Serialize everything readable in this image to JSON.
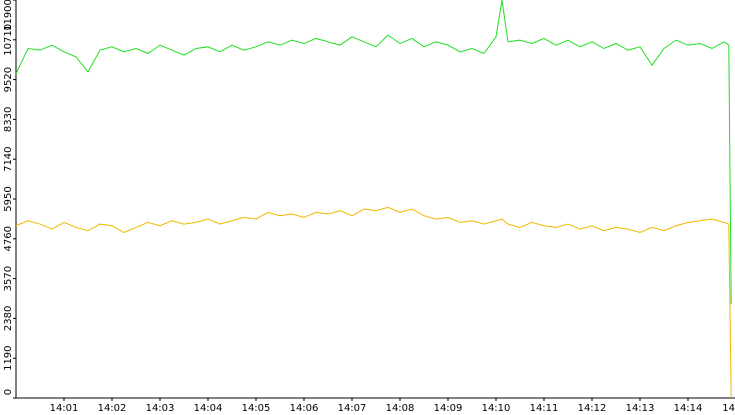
{
  "chart_data": {
    "type": "line",
    "x": [
      0,
      0.25,
      0.5,
      0.75,
      1,
      1.25,
      1.5,
      1.75,
      2,
      2.25,
      2.5,
      2.75,
      3,
      3.25,
      3.5,
      3.75,
      4,
      4.25,
      4.5,
      4.75,
      5,
      5.25,
      5.5,
      5.75,
      6,
      6.25,
      6.5,
      6.75,
      7,
      7.25,
      7.5,
      7.75,
      8,
      8.25,
      8.5,
      8.75,
      9,
      9.25,
      9.5,
      9.75,
      10,
      10.125,
      10.25,
      10.5,
      10.75,
      11,
      11.25,
      11.5,
      11.75,
      12,
      12.25,
      12.5,
      12.75,
      13,
      13.25,
      13.5,
      13.75,
      14,
      14.25,
      14.5,
      14.75,
      14.85,
      14.9
    ],
    "series": [
      {
        "color": "#22dd22",
        "values": [
          9700,
          10450,
          10400,
          10550,
          10350,
          10200,
          9750,
          10400,
          10500,
          10350,
          10450,
          10300,
          10550,
          10400,
          10250,
          10450,
          10500,
          10350,
          10550,
          10400,
          10500,
          10650,
          10550,
          10700,
          10600,
          10750,
          10650,
          10550,
          10800,
          10650,
          10500,
          10850,
          10600,
          10750,
          10500,
          10650,
          10550,
          10350,
          10450,
          10300,
          10800,
          11900,
          10650,
          10700,
          10600,
          10750,
          10550,
          10700,
          10500,
          10650,
          10450,
          10600,
          10400,
          10500,
          9950,
          10450,
          10700,
          10550,
          10600,
          10450,
          10650,
          10550,
          2800
        ]
      },
      {
        "color": "#f0b800",
        "values": [
          5150,
          5300,
          5200,
          5050,
          5250,
          5100,
          5000,
          5200,
          5150,
          4950,
          5100,
          5250,
          5150,
          5300,
          5200,
          5250,
          5350,
          5200,
          5300,
          5400,
          5350,
          5550,
          5450,
          5500,
          5400,
          5550,
          5500,
          5600,
          5450,
          5650,
          5600,
          5700,
          5550,
          5650,
          5450,
          5350,
          5400,
          5250,
          5300,
          5200,
          5300,
          5350,
          5200,
          5100,
          5250,
          5150,
          5100,
          5200,
          5050,
          5150,
          5000,
          5100,
          5050,
          4950,
          5100,
          5000,
          5150,
          5250,
          5300,
          5350,
          5250,
          5200,
          0
        ]
      }
    ],
    "xlim": [
      0,
      15
    ],
    "xticks": [
      {
        "value": 1,
        "label": "14:01"
      },
      {
        "value": 2,
        "label": "14:02"
      },
      {
        "value": 3,
        "label": "14:03"
      },
      {
        "value": 4,
        "label": "14:04"
      },
      {
        "value": 5,
        "label": "14:05"
      },
      {
        "value": 6,
        "label": "14:06"
      },
      {
        "value": 7,
        "label": "14:07"
      },
      {
        "value": 8,
        "label": "14:08"
      },
      {
        "value": 9,
        "label": "14:09"
      },
      {
        "value": 10,
        "label": "14:10"
      },
      {
        "value": 11,
        "label": "14:11"
      },
      {
        "value": 12,
        "label": "14:12"
      },
      {
        "value": 13,
        "label": "14:13"
      },
      {
        "value": 14,
        "label": "14:14"
      },
      {
        "value": 15,
        "label": "14"
      }
    ],
    "ylim": [
      0,
      11900
    ],
    "yticks": [
      0,
      1190,
      2380,
      3570,
      4760,
      5950,
      7140,
      8330,
      9520,
      10710,
      11900
    ]
  }
}
